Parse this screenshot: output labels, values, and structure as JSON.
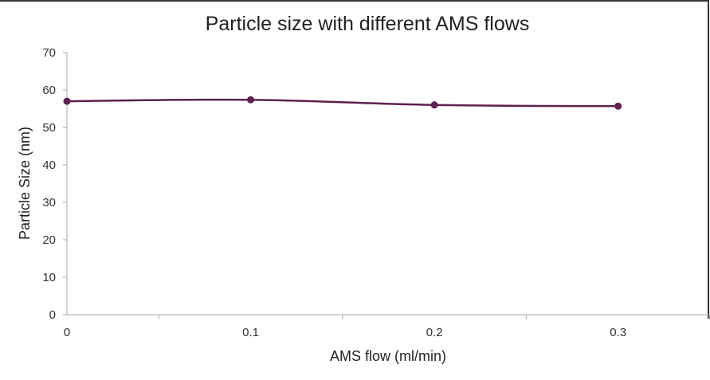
{
  "chart_data": {
    "type": "line",
    "title": "Particle size with different AMS flows",
    "xlabel": "AMS flow (ml/min)",
    "ylabel": "Particle Size (nm)",
    "x": [
      0,
      0.1,
      0.2,
      0.3
    ],
    "x_ticks": [
      "0",
      "0.1",
      "0.2",
      "0.3"
    ],
    "xlim": [
      0,
      0.35
    ],
    "ylim": [
      0,
      70
    ],
    "y_ticks": [
      "0",
      "10",
      "20",
      "30",
      "40",
      "50",
      "60",
      "70"
    ],
    "series": [
      {
        "values": [
          57,
          57.4,
          56,
          55.7
        ],
        "color": "#5e2150"
      }
    ],
    "grid": false,
    "legend": "none",
    "colors": {
      "line": "#5e2150",
      "axis": "#aaaaaa",
      "frame": "#333333"
    }
  }
}
